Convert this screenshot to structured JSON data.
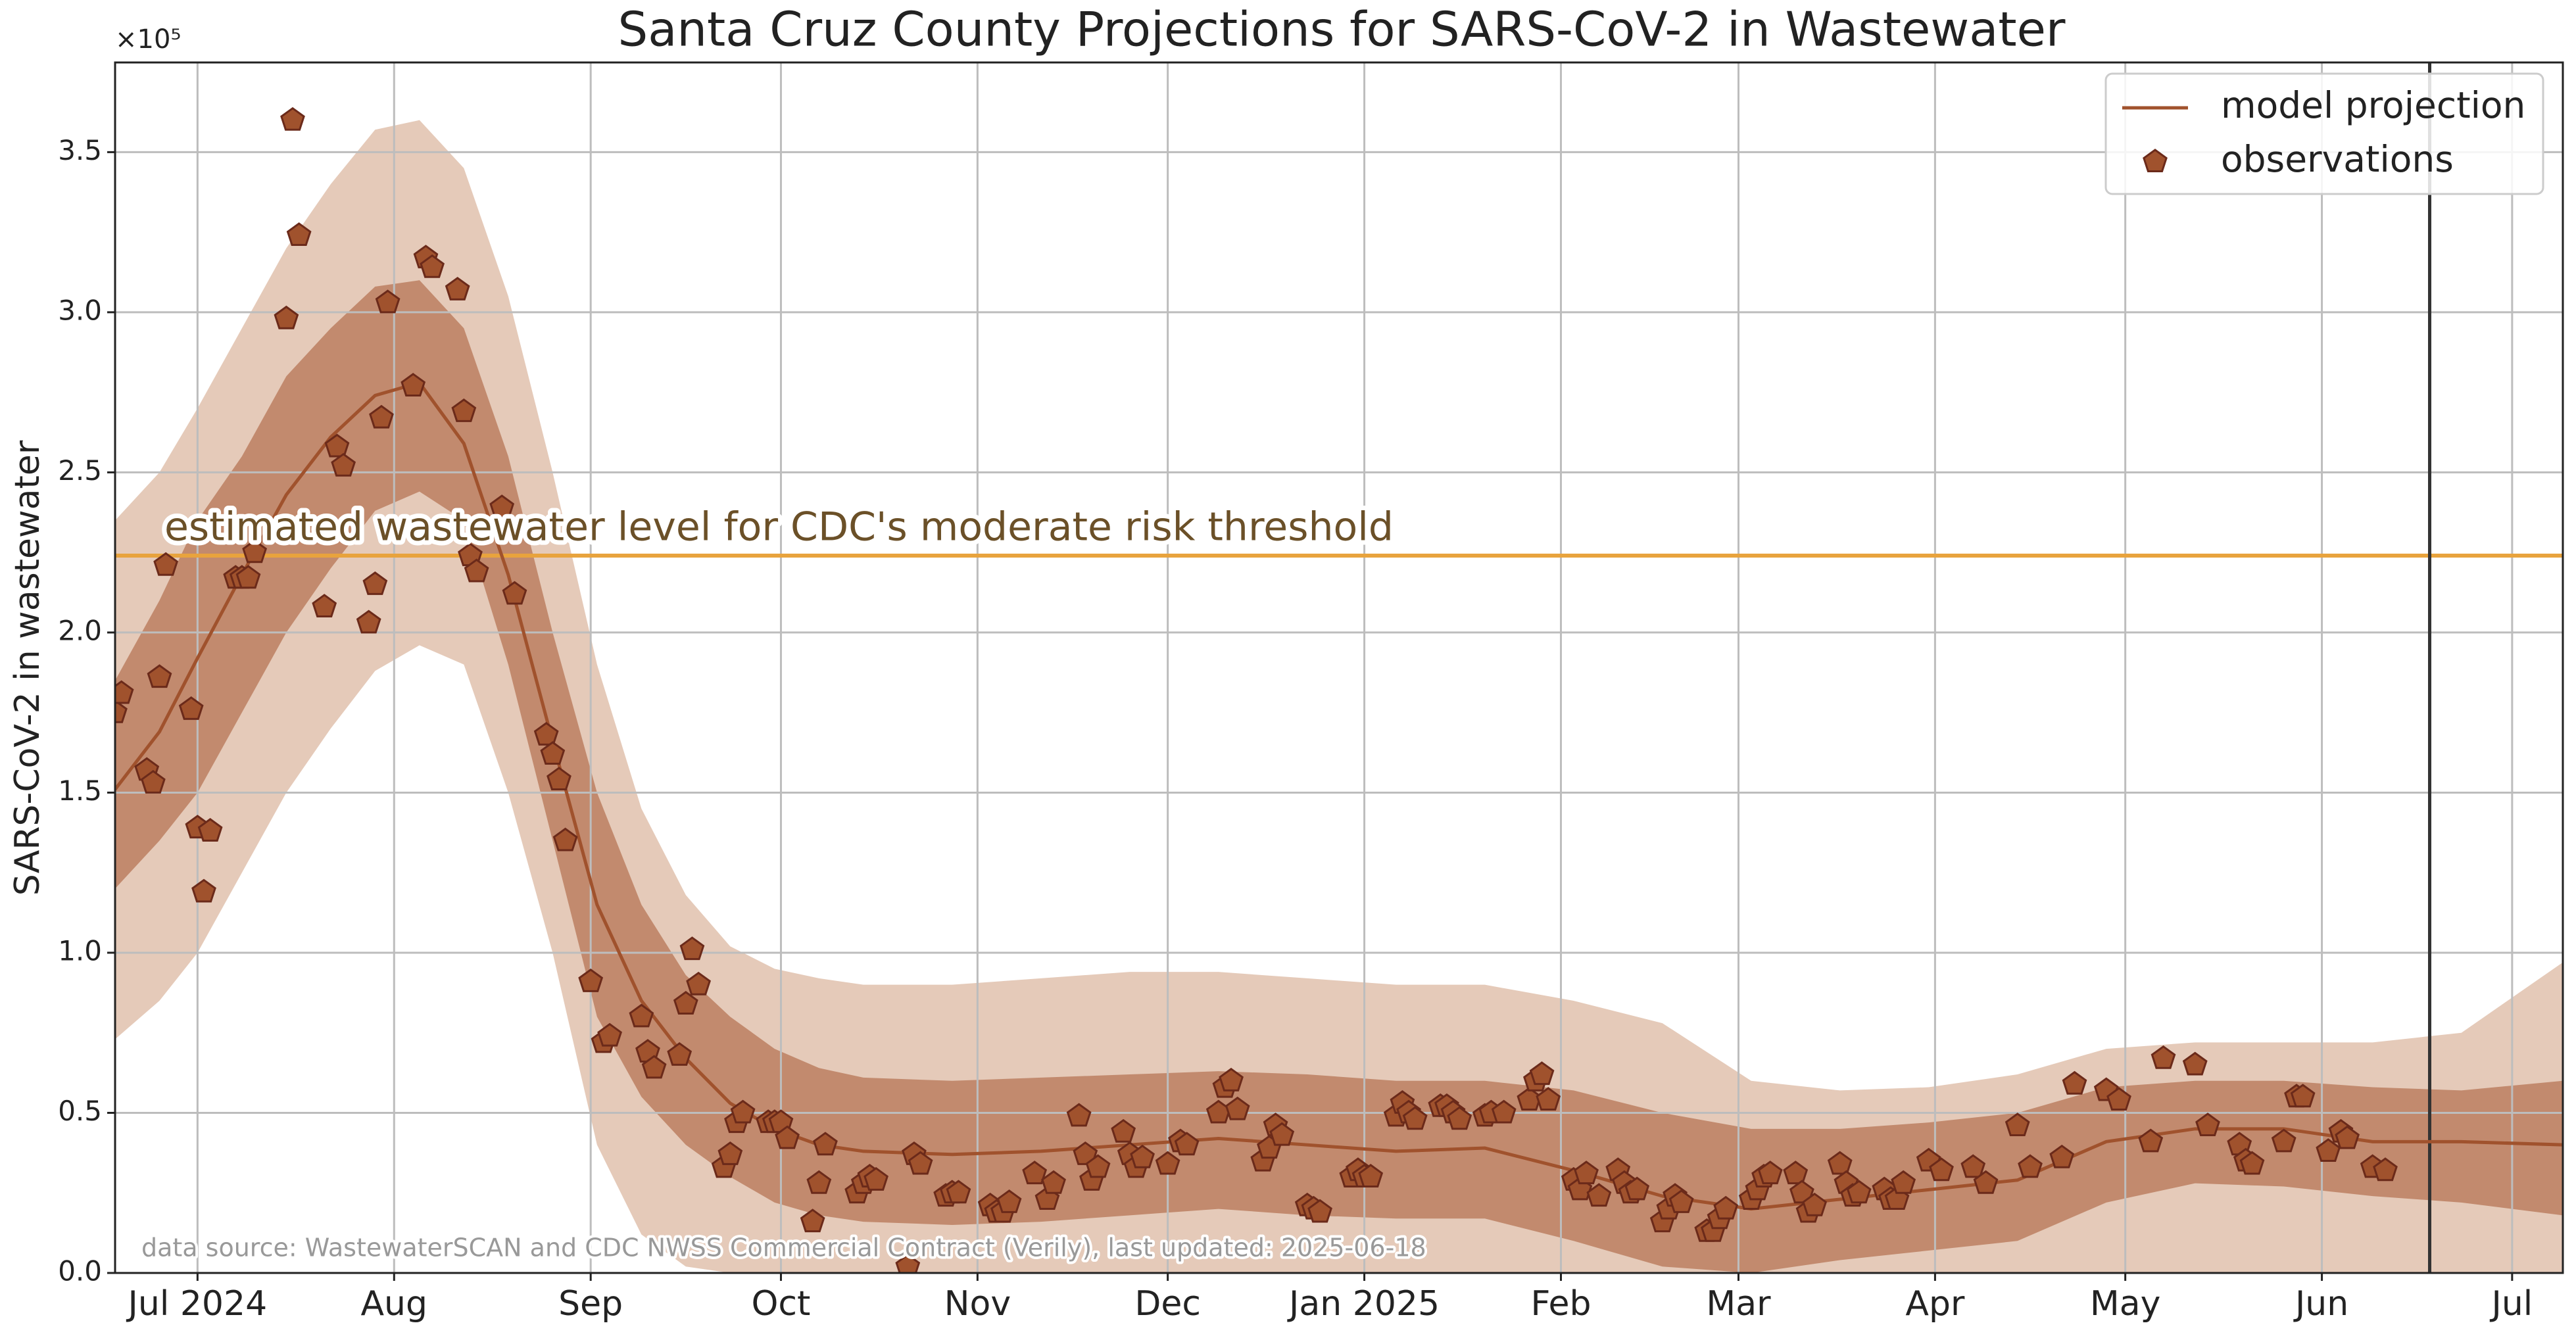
{
  "chart_data": {
    "type": "line",
    "title": "Santa Cruz County Projections for SARS-CoV-2 in Wastewater",
    "ylabel": "SARS-CoV-2 in wastewater",
    "y_offset_label": "×10⁵",
    "source": "data source: WastewaterSCAN and CDC NWSS Commercial Contract (Verily), last updated: 2025-06-18",
    "xlim": [
      "2024-06-18",
      "2025-07-09"
    ],
    "xticks": [
      {
        "value": "2024-07-01",
        "label": "Jul 2024"
      },
      {
        "value": "2024-08-01",
        "label": "Aug"
      },
      {
        "value": "2024-09-01",
        "label": "Sep"
      },
      {
        "value": "2024-10-01",
        "label": "Oct"
      },
      {
        "value": "2024-11-01",
        "label": "Nov"
      },
      {
        "value": "2024-12-01",
        "label": "Dec"
      },
      {
        "value": "2025-01-01",
        "label": "Jan 2025"
      },
      {
        "value": "2025-02-01",
        "label": "Feb"
      },
      {
        "value": "2025-03-01",
        "label": "Mar"
      },
      {
        "value": "2025-04-01",
        "label": "Apr"
      },
      {
        "value": "2025-05-01",
        "label": "May"
      },
      {
        "value": "2025-06-01",
        "label": "Jun"
      },
      {
        "value": "2025-07-01",
        "label": "Jul"
      }
    ],
    "ylim": [
      0,
      378000
    ],
    "yticks": [
      {
        "value": 0,
        "label": "0.0"
      },
      {
        "value": 50000,
        "label": "0.5"
      },
      {
        "value": 100000,
        "label": "1.0"
      },
      {
        "value": 150000,
        "label": "1.5"
      },
      {
        "value": 200000,
        "label": "2.0"
      },
      {
        "value": 250000,
        "label": "2.5"
      },
      {
        "value": 300000,
        "label": "3.0"
      },
      {
        "value": 350000,
        "label": "3.5"
      }
    ],
    "grid": true,
    "legend": "upper right",
    "hlines": [
      {
        "value": 224000,
        "label": "estimated wastewater level for CDC's moderate risk threshold",
        "color": "#e8a33d"
      }
    ],
    "vlines": [
      {
        "x": "2025-06-18",
        "color": "#333333"
      }
    ],
    "series": [
      {
        "name": "model projection",
        "type": "line",
        "color": "#a0522d",
        "x": [
          "2024-06-18",
          "2024-06-25",
          "2024-07-01",
          "2024-07-08",
          "2024-07-15",
          "2024-07-22",
          "2024-07-29",
          "2024-08-05",
          "2024-08-12",
          "2024-08-19",
          "2024-08-26",
          "2024-09-02",
          "2024-09-09",
          "2024-09-16",
          "2024-09-23",
          "2024-09-30",
          "2024-10-07",
          "2024-10-14",
          "2024-10-28",
          "2024-11-11",
          "2024-11-25",
          "2024-12-09",
          "2024-12-23",
          "2025-01-06",
          "2025-01-20",
          "2025-02-03",
          "2025-02-17",
          "2025-03-03",
          "2025-03-17",
          "2025-03-31",
          "2025-04-14",
          "2025-04-28",
          "2025-05-12",
          "2025-05-26",
          "2025-06-09",
          "2025-06-23",
          "2025-07-09"
        ],
        "values": [
          151000,
          169000,
          192000,
          218000,
          243000,
          261000,
          274000,
          278000,
          259000,
          218000,
          166000,
          115000,
          85000,
          67000,
          53000,
          45000,
          40000,
          38000,
          37000,
          38000,
          40000,
          42000,
          40000,
          38000,
          39000,
          32000,
          24000,
          20000,
          23000,
          26000,
          29000,
          41000,
          45000,
          45000,
          41000,
          41000,
          40000
        ],
        "bands": [
          {
            "color": "#e5cab9",
            "lower": [
              73000,
              85000,
              100000,
              125000,
              150000,
              170000,
              188000,
              196000,
              190000,
              150000,
              100000,
              40000,
              12000,
              2000,
              0,
              0,
              0,
              0,
              0,
              0,
              0,
              0,
              0,
              0,
              0,
              0,
              0,
              0,
              0,
              0,
              0,
              0,
              0,
              0,
              0,
              0,
              0
            ],
            "upper": [
              235000,
              250000,
              270000,
              295000,
              320000,
              340000,
              357000,
              360000,
              345000,
              305000,
              250000,
              190000,
              145000,
              118000,
              102000,
              95000,
              92000,
              90000,
              90000,
              92000,
              94000,
              94000,
              92000,
              90000,
              90000,
              85000,
              78000,
              60000,
              57000,
              58000,
              62000,
              70000,
              72000,
              72000,
              72000,
              75000,
              97000
            ]
          },
          {
            "color": "#c28a6e",
            "lower": [
              120000,
              135000,
              150000,
              175000,
              200000,
              220000,
              238000,
              244000,
              235000,
              190000,
              135000,
              80000,
              55000,
              40000,
              30000,
              22000,
              18000,
              16000,
              15000,
              16000,
              18000,
              20000,
              18000,
              17000,
              17000,
              10000,
              2000,
              0,
              4000,
              7000,
              10000,
              22000,
              28000,
              27000,
              24000,
              22000,
              18000
            ],
            "upper": [
              185000,
              210000,
              235000,
              255000,
              280000,
              295000,
              308000,
              310000,
              295000,
              255000,
              200000,
              150000,
              115000,
              93000,
              80000,
              70000,
              64000,
              61000,
              60000,
              61000,
              62000,
              63000,
              62000,
              60000,
              60000,
              57000,
              50000,
              45000,
              45000,
              47000,
              50000,
              58000,
              60000,
              60000,
              58000,
              57000,
              60000
            ]
          }
        ]
      },
      {
        "name": "observations",
        "type": "scatter",
        "color": "#a0522d",
        "edgecolor": "#6b2a1a",
        "x": [
          "2024-06-18",
          "2024-06-19",
          "2024-06-23",
          "2024-06-24",
          "2024-06-25",
          "2024-06-26",
          "2024-06-30",
          "2024-07-01",
          "2024-07-02",
          "2024-07-03",
          "2024-07-07",
          "2024-07-08",
          "2024-07-09",
          "2024-07-10",
          "2024-07-15",
          "2024-07-16",
          "2024-07-17",
          "2024-07-21",
          "2024-07-23",
          "2024-07-24",
          "2024-07-28",
          "2024-07-29",
          "2024-07-30",
          "2024-07-31",
          "2024-08-04",
          "2024-08-06",
          "2024-08-07",
          "2024-08-11",
          "2024-08-12",
          "2024-08-13",
          "2024-08-14",
          "2024-08-18",
          "2024-08-20",
          "2024-08-25",
          "2024-08-26",
          "2024-08-27",
          "2024-08-28",
          "2024-09-01",
          "2024-09-03",
          "2024-09-04",
          "2024-09-09",
          "2024-09-10",
          "2024-09-11",
          "2024-09-15",
          "2024-09-16",
          "2024-09-17",
          "2024-09-18",
          "2024-09-22",
          "2024-09-23",
          "2024-09-24",
          "2024-09-25",
          "2024-09-29",
          "2024-09-30",
          "2024-10-01",
          "2024-10-02",
          "2024-10-06",
          "2024-10-07",
          "2024-10-08",
          "2024-10-13",
          "2024-10-14",
          "2024-10-15",
          "2024-10-16",
          "2024-10-21",
          "2024-10-22",
          "2024-10-23",
          "2024-10-27",
          "2024-10-28",
          "2024-10-29",
          "2024-11-03",
          "2024-11-04",
          "2024-11-05",
          "2024-11-06",
          "2024-11-10",
          "2024-11-12",
          "2024-11-13",
          "2024-11-17",
          "2024-11-18",
          "2024-11-19",
          "2024-11-20",
          "2024-11-24",
          "2024-11-25",
          "2024-11-26",
          "2024-11-27",
          "2024-12-01",
          "2024-12-03",
          "2024-12-04",
          "2024-12-09",
          "2024-12-10",
          "2024-12-11",
          "2024-12-12",
          "2024-12-16",
          "2024-12-17",
          "2024-12-18",
          "2024-12-19",
          "2024-12-23",
          "2024-12-24",
          "2024-12-25",
          "2024-12-30",
          "2024-12-31",
          "2025-01-01",
          "2025-01-02",
          "2025-01-06",
          "2025-01-07",
          "2025-01-08",
          "2025-01-09",
          "2025-01-13",
          "2025-01-14",
          "2025-01-15",
          "2025-01-16",
          "2025-01-20",
          "2025-01-21",
          "2025-01-23",
          "2025-01-27",
          "2025-01-28",
          "2025-01-29",
          "2025-01-30",
          "2025-02-03",
          "2025-02-04",
          "2025-02-05",
          "2025-02-07",
          "2025-02-10",
          "2025-02-11",
          "2025-02-12",
          "2025-02-13",
          "2025-02-17",
          "2025-02-18",
          "2025-02-19",
          "2025-02-20",
          "2025-02-24",
          "2025-02-25",
          "2025-02-26",
          "2025-02-27",
          "2025-03-03",
          "2025-03-04",
          "2025-03-05",
          "2025-03-06",
          "2025-03-10",
          "2025-03-11",
          "2025-03-12",
          "2025-03-13",
          "2025-03-17",
          "2025-03-18",
          "2025-03-19",
          "2025-03-20",
          "2025-03-24",
          "2025-03-25",
          "2025-03-26",
          "2025-03-27",
          "2025-03-31",
          "2025-04-02",
          "2025-04-07",
          "2025-04-09",
          "2025-04-14",
          "2025-04-16",
          "2025-04-21",
          "2025-04-23",
          "2025-04-28",
          "2025-04-30",
          "2025-05-05",
          "2025-05-07",
          "2025-05-12",
          "2025-05-14",
          "2025-05-19",
          "2025-05-20",
          "2025-05-21",
          "2025-05-26",
          "2025-05-28",
          "2025-05-29",
          "2025-06-02",
          "2025-06-04",
          "2025-06-05",
          "2025-06-09",
          "2025-06-11"
        ],
        "values": [
          175000,
          181000,
          157000,
          153000,
          186000,
          221000,
          176000,
          139000,
          119000,
          138000,
          217000,
          217000,
          217000,
          225000,
          298000,
          360000,
          324000,
          208000,
          258000,
          252000,
          203000,
          215000,
          267000,
          303000,
          277000,
          317000,
          314000,
          307000,
          269000,
          224000,
          219000,
          239000,
          212000,
          168000,
          162000,
          154000,
          135000,
          91000,
          72000,
          74000,
          80000,
          69000,
          64000,
          68000,
          84000,
          101000,
          90000,
          33000,
          37000,
          47000,
          50000,
          47000,
          47000,
          47000,
          42000,
          16000,
          28000,
          40000,
          25000,
          28000,
          30000,
          29000,
          2000,
          37000,
          34000,
          24000,
          25000,
          25000,
          21000,
          19000,
          19000,
          22000,
          31000,
          23000,
          28000,
          49000,
          37000,
          29000,
          33000,
          44000,
          37000,
          33000,
          36000,
          34000,
          41000,
          40000,
          50000,
          58000,
          60000,
          51000,
          35000,
          39000,
          46000,
          43000,
          21000,
          20000,
          19000,
          30000,
          32000,
          30000,
          30000,
          49000,
          53000,
          50000,
          48000,
          52000,
          52000,
          50000,
          48000,
          49000,
          50000,
          50000,
          54000,
          60000,
          62000,
          54000,
          29000,
          26000,
          31000,
          24000,
          32000,
          28000,
          25000,
          26000,
          16000,
          20000,
          24000,
          22000,
          13000,
          13000,
          17000,
          20000,
          23000,
          26000,
          30000,
          31000,
          31000,
          25000,
          19000,
          21000,
          34000,
          28000,
          24000,
          25000,
          26000,
          23000,
          23000,
          28000,
          35000,
          32000,
          33000,
          28000,
          46000,
          33000,
          36000,
          59000,
          57000,
          54000,
          41000,
          67000,
          65000,
          46000,
          40000,
          35000,
          34000,
          41000,
          55000,
          55000,
          38000,
          44000,
          42000,
          33000,
          32000
        ]
      }
    ]
  }
}
